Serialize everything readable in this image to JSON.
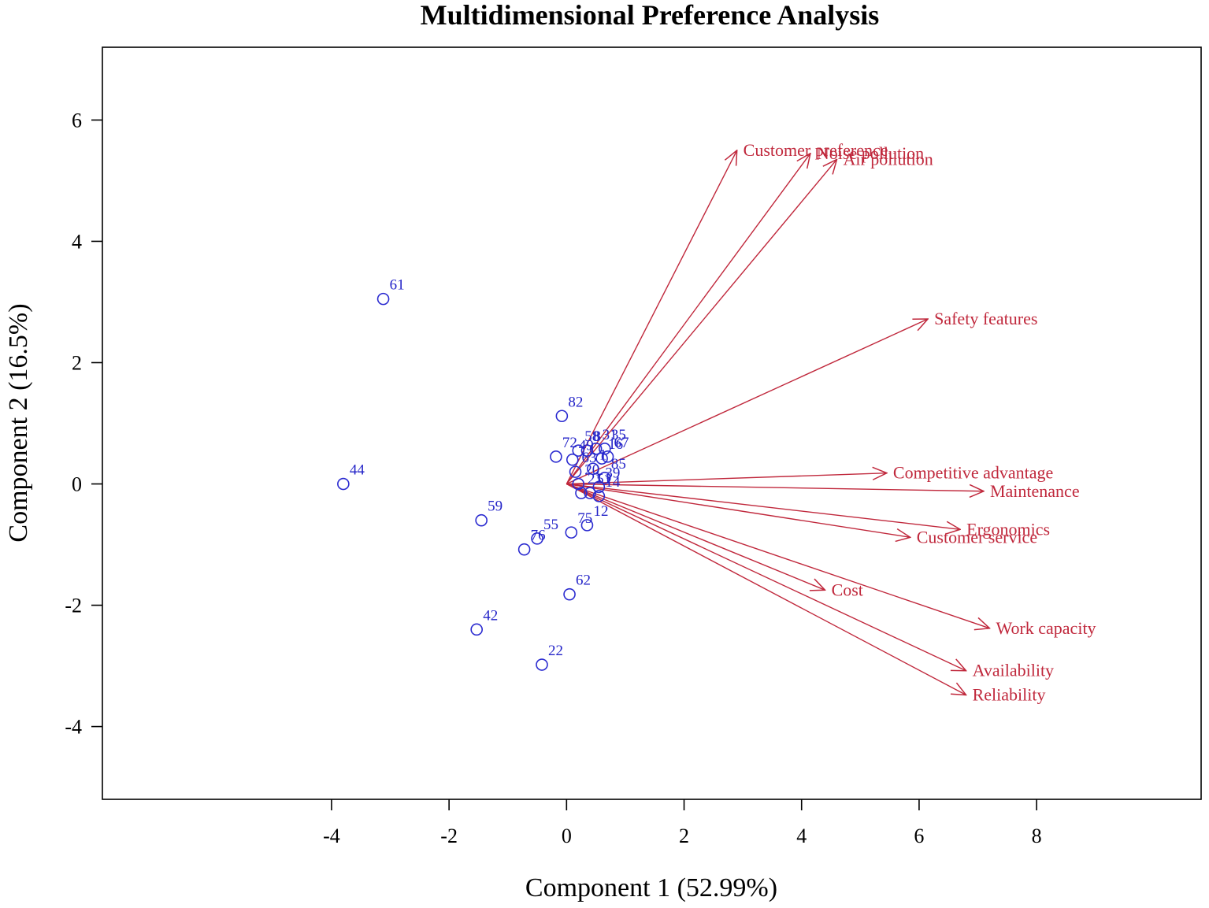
{
  "chart_data": {
    "type": "scatter",
    "title": "Multidimensional Preference Analysis",
    "xlabel": "Component 1 (52.99%)",
    "ylabel": "Component 2 (16.5%)",
    "xlim": [
      -7.9,
      10.8
    ],
    "ylim": [
      -5.2,
      7.2
    ],
    "xticks": [
      -4,
      -2,
      0,
      2,
      4,
      6,
      8
    ],
    "yticks": [
      -4,
      -2,
      0,
      2,
      4,
      6
    ],
    "grid": false,
    "legend": "none",
    "colors": {
      "points": "#2b2bd0",
      "point_labels": "#2323c8",
      "vectors": "#c0283c",
      "axes": "#000000"
    },
    "observations": [
      {
        "label": "61",
        "x": -3.12,
        "y": 3.05
      },
      {
        "label": "44",
        "x": -3.8,
        "y": 0.0
      },
      {
        "label": "82",
        "x": -0.08,
        "y": 1.12
      },
      {
        "label": "72",
        "x": -0.18,
        "y": 0.45
      },
      {
        "label": "58",
        "x": 0.2,
        "y": 0.55
      },
      {
        "label": "8",
        "x": 0.35,
        "y": 0.55
      },
      {
        "label": "31",
        "x": 0.5,
        "y": 0.58
      },
      {
        "label": "35",
        "x": 0.65,
        "y": 0.58
      },
      {
        "label": "49",
        "x": 0.1,
        "y": 0.4
      },
      {
        "label": "16",
        "x": 0.6,
        "y": 0.42
      },
      {
        "label": "67",
        "x": 0.7,
        "y": 0.45
      },
      {
        "label": "1",
        "x": 0.45,
        "y": 0.25
      },
      {
        "label": "63",
        "x": 0.15,
        "y": 0.2
      },
      {
        "label": "85",
        "x": 0.65,
        "y": 0.1
      },
      {
        "label": "20",
        "x": 0.2,
        "y": 0.0
      },
      {
        "label": "39",
        "x": 0.55,
        "y": -0.05
      },
      {
        "label": "21",
        "x": 0.25,
        "y": -0.15
      },
      {
        "label": "51",
        "x": 0.4,
        "y": -0.15
      },
      {
        "label": "14",
        "x": 0.55,
        "y": -0.2
      },
      {
        "label": "12",
        "x": 0.35,
        "y": -0.68
      },
      {
        "label": "75",
        "x": 0.08,
        "y": -0.8
      },
      {
        "label": "55",
        "x": -0.5,
        "y": -0.9
      },
      {
        "label": "76",
        "x": -0.72,
        "y": -1.08
      },
      {
        "label": "59",
        "x": -1.45,
        "y": -0.6
      },
      {
        "label": "62",
        "x": 0.05,
        "y": -1.82
      },
      {
        "label": "42",
        "x": -1.53,
        "y": -2.4
      },
      {
        "label": "22",
        "x": -0.42,
        "y": -2.98
      }
    ],
    "vectors": [
      {
        "label": "Customer preference",
        "x": 2.9,
        "y": 5.5
      },
      {
        "label": "Noise pollution",
        "x": 4.15,
        "y": 5.45
      },
      {
        "label": "Air pollution",
        "x": 4.6,
        "y": 5.35
      },
      {
        "label": "Safety features",
        "x": 6.15,
        "y": 2.72
      },
      {
        "label": "Competitive advantage",
        "x": 5.45,
        "y": 0.18
      },
      {
        "label": "Maintenance",
        "x": 7.1,
        "y": -0.12
      },
      {
        "label": "Ergonomics",
        "x": 6.7,
        "y": -0.75
      },
      {
        "label": "Customer service",
        "x": 5.85,
        "y": -0.88
      },
      {
        "label": "Cost",
        "x": 4.4,
        "y": -1.75
      },
      {
        "label": "Work capacity",
        "x": 7.2,
        "y": -2.38
      },
      {
        "label": "Availability",
        "x": 6.8,
        "y": -3.08
      },
      {
        "label": "Reliability",
        "x": 6.8,
        "y": -3.48
      }
    ]
  }
}
